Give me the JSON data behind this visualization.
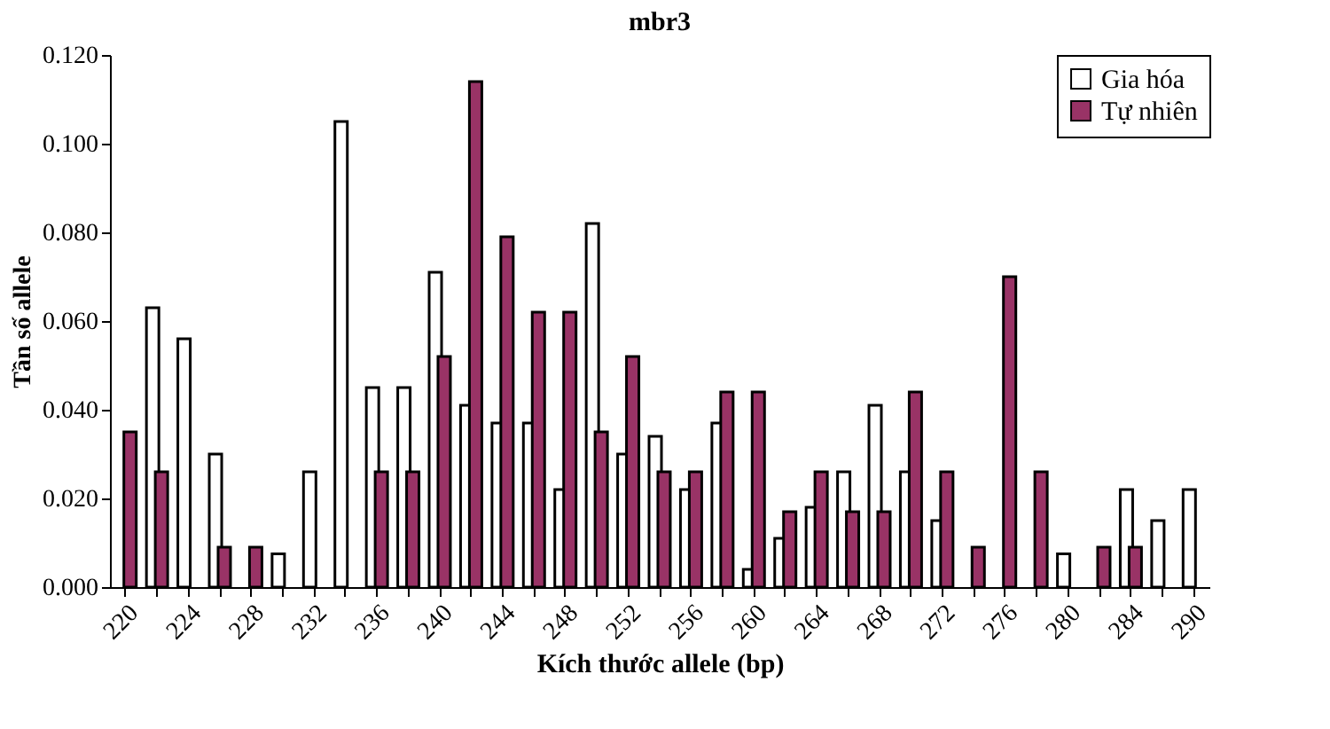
{
  "chart_data": {
    "type": "bar",
    "title": "mbr3",
    "xlabel": "Kích thước allele (bp)",
    "ylabel": "Tần số allele",
    "categories": [
      "220",
      null,
      "224",
      null,
      "228",
      null,
      "232",
      null,
      "236",
      null,
      "240",
      null,
      "244",
      null,
      "248",
      null,
      "252",
      null,
      "256",
      null,
      "260",
      null,
      "264",
      null,
      "268",
      null,
      "272",
      null,
      "276",
      null,
      "280",
      null,
      "284",
      null,
      "290"
    ],
    "series": [
      {
        "name": "Gia hóa",
        "color": "#ffffff",
        "values": [
          null,
          0.063,
          0.056,
          0.03,
          null,
          0.0075,
          0.026,
          0.105,
          0.045,
          0.045,
          0.071,
          0.041,
          0.037,
          0.037,
          0.022,
          0.082,
          0.03,
          0.034,
          0.022,
          0.037,
          0.004,
          0.011,
          0.018,
          0.026,
          0.041,
          0.026,
          0.015,
          null,
          null,
          null,
          0.0075,
          null,
          0.022,
          0.015,
          0.022
        ]
      },
      {
        "name": "Tự nhiên",
        "color": "#993366",
        "values": [
          0.035,
          0.026,
          null,
          0.009,
          0.009,
          null,
          null,
          null,
          0.026,
          0.026,
          0.052,
          0.114,
          0.079,
          0.062,
          0.062,
          0.035,
          0.052,
          0.026,
          0.026,
          0.044,
          0.044,
          0.017,
          0.026,
          0.017,
          0.017,
          0.044,
          0.026,
          0.009,
          0.07,
          0.026,
          null,
          0.009,
          0.009,
          null,
          null
        ]
      }
    ],
    "ylim": [
      0,
      0.12
    ],
    "yticks": [
      {
        "value": 0,
        "label": "0.000"
      },
      {
        "value": 0.02,
        "label": "0.020"
      },
      {
        "value": 0.04,
        "label": "0.040"
      },
      {
        "value": 0.06,
        "label": "0.060"
      },
      {
        "value": 0.08,
        "label": "0.080"
      },
      {
        "value": 0.1,
        "label": "0.100"
      },
      {
        "value": 0.12,
        "label": "0.120"
      }
    ],
    "grid": false,
    "legend": "top right"
  }
}
